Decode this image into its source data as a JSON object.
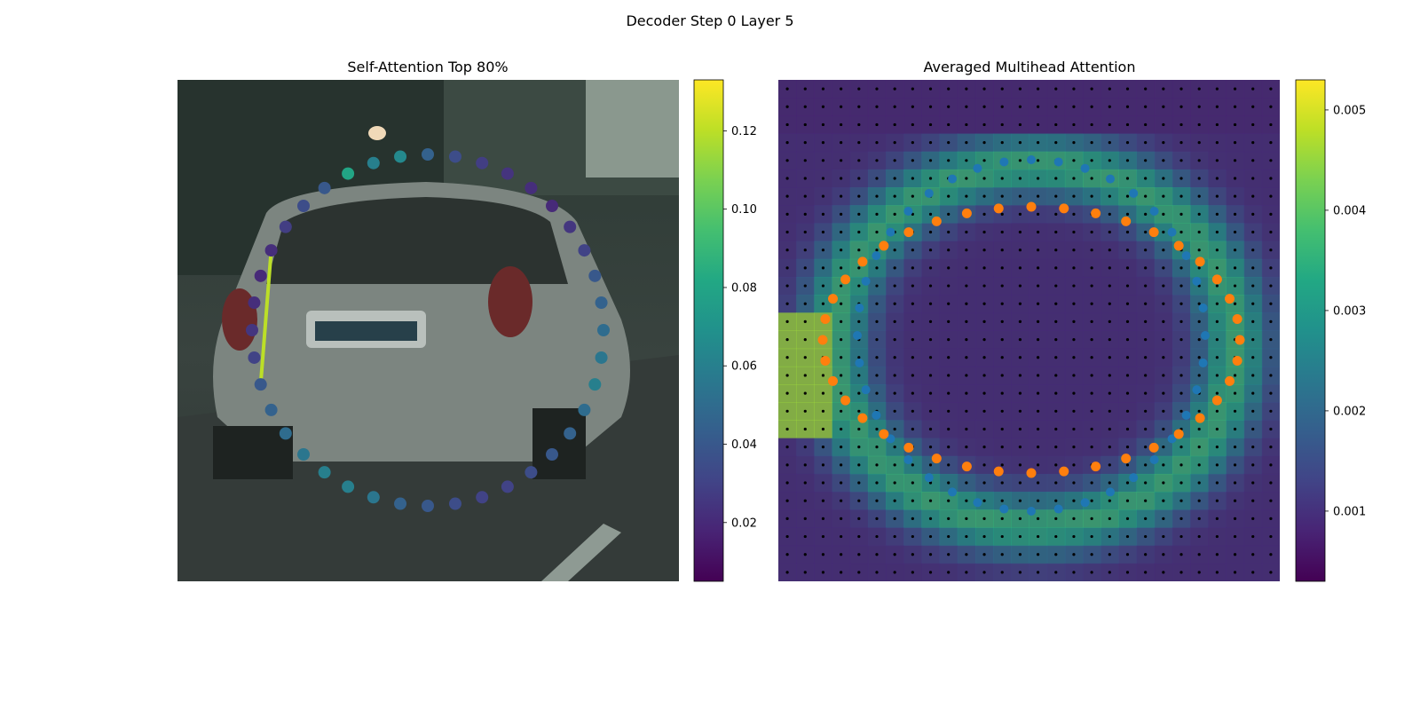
{
  "figure": {
    "title": "Decoder Step 0 Layer 5"
  },
  "left_panel": {
    "title": "Self-Attention Top 80%",
    "image_desc": "car",
    "colorbar": {
      "ticks": [
        0.02,
        0.04,
        0.06,
        0.08,
        0.1,
        0.12
      ],
      "tick_labels": [
        "0.02",
        "0.04",
        "0.06",
        "0.08",
        "0.10",
        "0.12"
      ],
      "min": 0.005,
      "max": 0.133,
      "cmap": "viridis"
    }
  },
  "right_panel": {
    "title": "Averaged Multihead Attention",
    "colorbar": {
      "ticks": [
        0.001,
        0.002,
        0.003,
        0.004,
        0.005
      ],
      "tick_labels": [
        "0.001",
        "0.002",
        "0.003",
        "0.004",
        "0.005"
      ],
      "min": 0.0003,
      "max": 0.0053,
      "cmap": "viridis"
    },
    "series_colors": {
      "blue": "#1f77b4",
      "orange": "#ff7f0e",
      "grid_points": "#000000"
    }
  },
  "chart_data": [
    {
      "type": "scatter",
      "title": "Self-Attention Top 80%",
      "xlim": [
        0,
        1
      ],
      "ylim": [
        0,
        1
      ],
      "polygon": "ring of 40 query points around the vehicle",
      "series": [
        {
          "values": [
            0.045,
            0.035,
            0.028,
            0.024,
            0.022,
            0.02,
            0.025,
            0.03,
            0.04,
            0.045,
            0.05,
            0.055,
            0.06,
            0.05,
            0.045,
            0.04,
            0.035,
            0.03,
            0.03,
            0.035,
            0.04,
            0.045,
            0.055,
            0.06,
            0.06,
            0.055,
            0.05,
            0.045,
            0.04,
            0.03,
            0.025,
            0.022,
            0.02,
            0.022,
            0.028,
            0.035,
            0.04,
            0.08,
            0.06,
            0.065
          ]
        }
      ],
      "attention_edges": [
        {
          "from": 28,
          "to": 33,
          "weight": 0.12
        }
      ]
    },
    {
      "type": "heatmap",
      "title": "Averaged Multihead Attention",
      "grid": [
        28,
        28
      ],
      "description": "per-cell attention weights averaged over heads; high weights along vehicle outline",
      "value_range": [
        0.0003,
        0.0053
      ]
    }
  ]
}
